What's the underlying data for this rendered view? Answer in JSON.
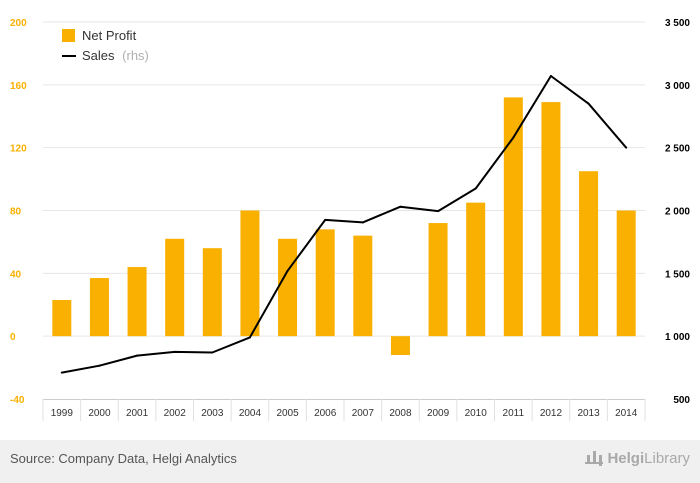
{
  "chart_data": {
    "type": "bar+line",
    "categories": [
      "1999",
      "2000",
      "2001",
      "2002",
      "2003",
      "2004",
      "2005",
      "2006",
      "2007",
      "2008",
      "2009",
      "2010",
      "2011",
      "2012",
      "2013",
      "2014"
    ],
    "series": [
      {
        "name": "Net Profit",
        "type": "bar",
        "axis": "left",
        "color": "#f9b000",
        "values": [
          23,
          37,
          44,
          62,
          56,
          80,
          62,
          68,
          64,
          -12,
          72,
          85,
          152,
          149,
          105,
          80
        ]
      },
      {
        "name": "Sales",
        "name_suffix": "(rhs)",
        "type": "line",
        "axis": "right",
        "color": "#000000",
        "values": [
          710,
          765,
          845,
          875,
          870,
          990,
          1520,
          1925,
          1905,
          2030,
          1995,
          2175,
          2580,
          3070,
          2850,
          2500
        ]
      }
    ],
    "left_axis": {
      "ylim": [
        -40,
        200
      ],
      "ticks": [
        -40,
        0,
        40,
        80,
        120,
        160,
        200
      ],
      "tick_labels": [
        "-40",
        "0",
        "40",
        "80",
        "120",
        "160",
        "200"
      ],
      "color": "#f9b000"
    },
    "right_axis": {
      "ylim": [
        500,
        3500
      ],
      "ticks": [
        500,
        1000,
        1500,
        2000,
        2500,
        3000,
        3500
      ],
      "tick_labels": [
        "500",
        "1 000",
        "1 500",
        "2 000",
        "2 500",
        "3 000",
        "3 500"
      ],
      "color": "#000000"
    },
    "grid": true,
    "legend": "top-left"
  },
  "footer": {
    "source": "Source: Company Data, Helgi Analytics",
    "brand_bold": "Helgi",
    "brand_thin": "Library"
  }
}
